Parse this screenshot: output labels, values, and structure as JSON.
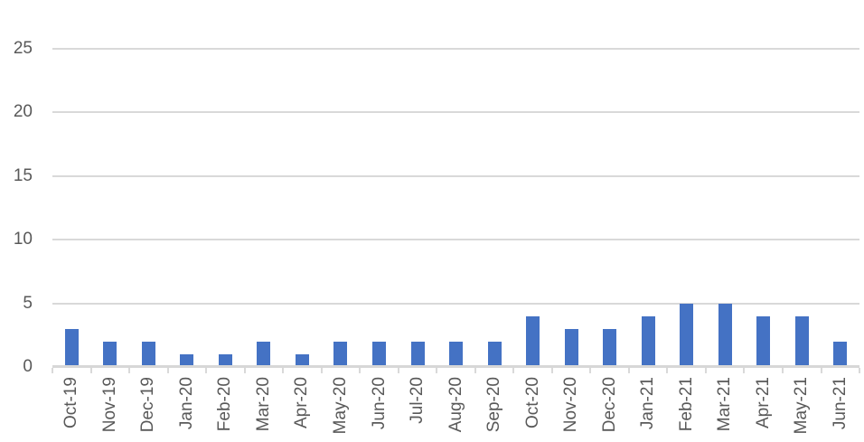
{
  "chart_data": {
    "type": "bar",
    "title": "",
    "xlabel": "",
    "ylabel": "",
    "categories": [
      "Oct-19",
      "Nov-19",
      "Dec-19",
      "Jan-20",
      "Feb-20",
      "Mar-20",
      "Apr-20",
      "May-20",
      "Jun-20",
      "Jul-20",
      "Aug-20",
      "Sep-20",
      "Oct-20",
      "Nov-20",
      "Dec-20",
      "Jan-21",
      "Feb-21",
      "Mar-21",
      "Apr-21",
      "May-21",
      "Jun-21"
    ],
    "values": [
      3,
      2,
      2,
      1,
      1,
      2,
      1,
      2,
      2,
      2,
      2,
      2,
      4,
      3,
      3,
      4,
      5,
      5,
      4,
      4,
      2
    ],
    "ylim": [
      0,
      25
    ],
    "yticks": [
      0,
      5,
      10,
      15,
      20,
      25
    ],
    "grid": true,
    "legend_position": "none",
    "x_label_rotation": -90,
    "colors": {
      "bar": "#4472C4",
      "gridline": "#D9D9D9",
      "axis_line": "#D7D7D7",
      "tick_label": "#595959",
      "background": "#FFFFFF"
    }
  }
}
